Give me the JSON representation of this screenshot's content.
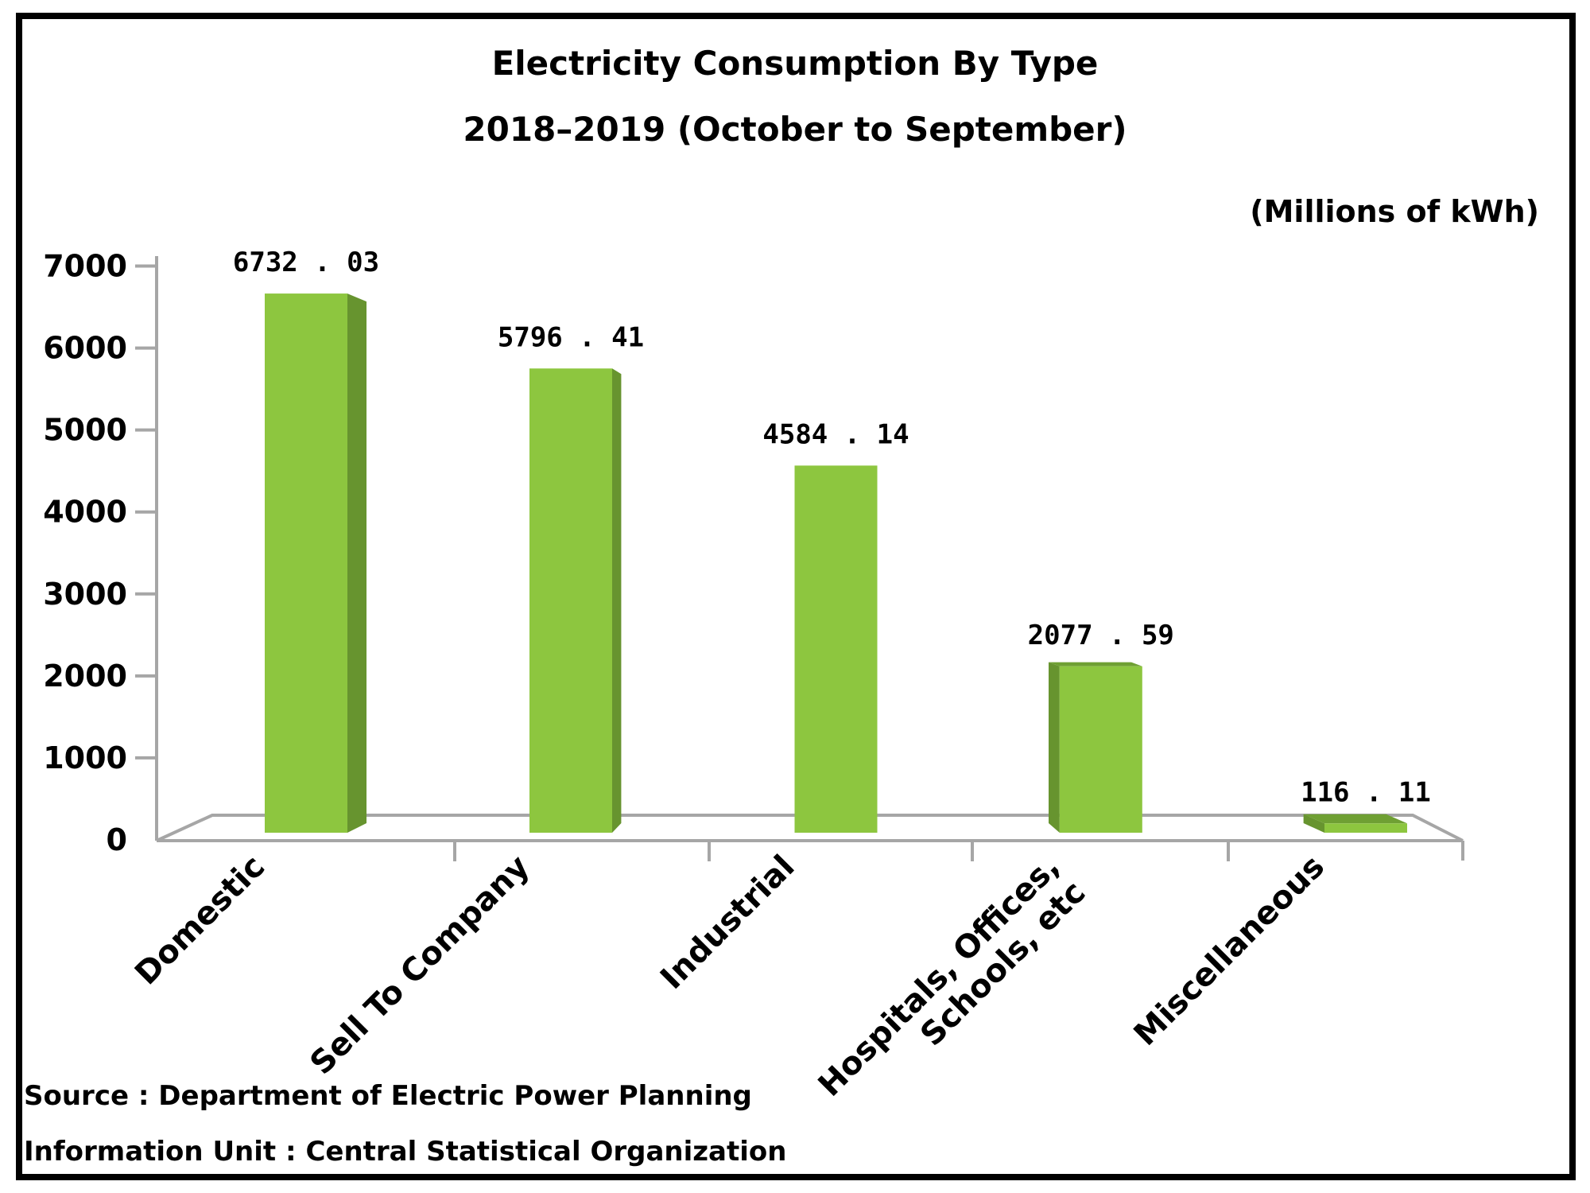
{
  "header": {
    "title": "Electricity Consumption By Type",
    "subtitle": "2018–2019 (October to September)",
    "unit_label": "(Millions of kWh)"
  },
  "footer": {
    "source": "Source : Department of Electric Power Planning",
    "information_unit": "Information Unit : Central Statistical Organization"
  },
  "chart_data": {
    "type": "bar",
    "style": "3d-perspective-column",
    "title": "Electricity Consumption By Type",
    "subtitle": "2018–2019 (October to September)",
    "unit": "Millions of kWh",
    "categories": [
      "Domestic",
      "Sell To Company",
      "Industrial",
      "Hospitals, Offices, Schools, etc",
      "Miscellaneous"
    ],
    "category_label_lines": [
      [
        "Domestic"
      ],
      [
        "Sell To Company"
      ],
      [
        "Industrial"
      ],
      [
        "Hospitals, Offices,",
        "Schools, etc"
      ],
      [
        "Miscellaneous"
      ]
    ],
    "values": [
      6732.03,
      5796.41,
      4584.14,
      2077.59,
      116.11
    ],
    "value_labels": [
      "6732 . 03",
      "5796 . 41",
      "4584 . 14",
      "2077 . 59",
      "116 . 11"
    ],
    "xlabel": "",
    "ylabel": "",
    "y_axis": {
      "min": 0,
      "max": 7000,
      "step": 1000,
      "ticks": [
        0,
        1000,
        2000,
        3000,
        4000,
        5000,
        6000,
        7000
      ]
    },
    "legend": "none",
    "grid": "off",
    "colors": {
      "bar_front": "#8DC63F",
      "bar_side": "#67942F",
      "bar_top": "#6FA033",
      "axis": "#A6A6A6",
      "text": "#000000"
    }
  }
}
